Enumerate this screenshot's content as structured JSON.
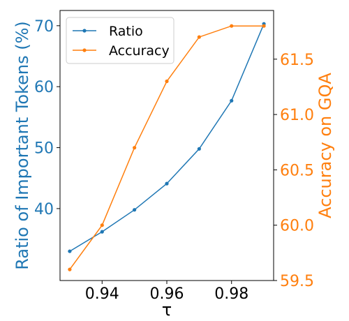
{
  "chart_data": {
    "type": "line",
    "xlabel": "τ",
    "x": [
      0.93,
      0.94,
      0.95,
      0.96,
      0.97,
      0.98,
      0.99
    ],
    "xlim": [
      0.927,
      0.993
    ],
    "xticks": [
      "0.94",
      "0.96",
      "0.98"
    ],
    "xtick_values": [
      0.94,
      0.96,
      0.98
    ],
    "legend_position": "top-left",
    "series": [
      {
        "name": "Ratio",
        "axis": "left",
        "color": "#1f77b4",
        "values": [
          33.0,
          36.2,
          39.8,
          44.1,
          49.8,
          57.7,
          70.3
        ]
      },
      {
        "name": "Accuracy",
        "axis": "right",
        "color": "#ff7f0e",
        "values": [
          59.6,
          60.0,
          60.7,
          61.3,
          61.7,
          61.8,
          61.8
        ]
      }
    ],
    "y_left": {
      "label": "Ratio of Important Tokens (%)",
      "color": "#1f77b4",
      "lim": [
        28.2,
        72.5
      ],
      "ticks": [
        "40",
        "50",
        "60",
        "70"
      ],
      "tick_values": [
        40,
        50,
        60,
        70
      ]
    },
    "y_right": {
      "label": "Accuracy on GQA",
      "color": "#ff7f0e",
      "lim": [
        59.5,
        61.94
      ],
      "ticks": [
        "59.5",
        "60.0",
        "60.5",
        "61.0",
        "61.5"
      ],
      "tick_values": [
        59.5,
        60.0,
        60.5,
        61.0,
        61.5
      ]
    }
  }
}
